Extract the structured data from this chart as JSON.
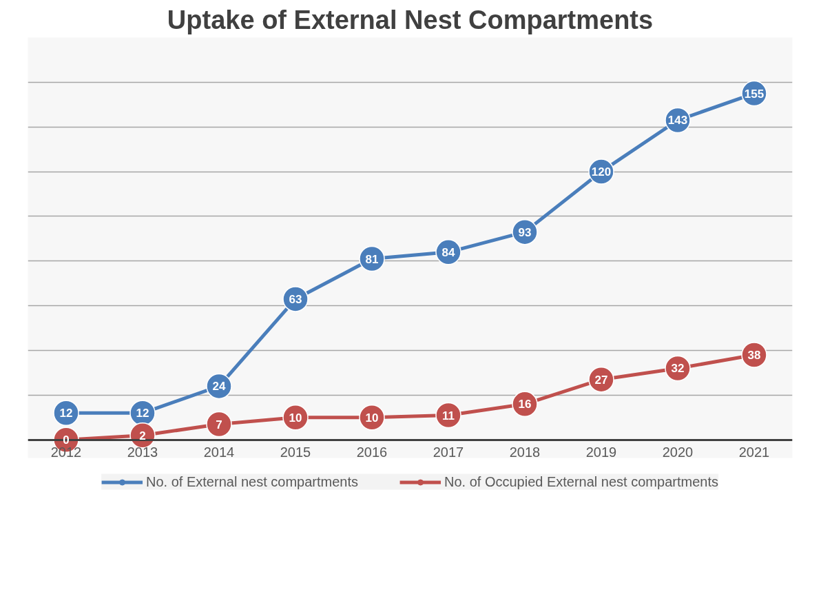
{
  "chart_data": {
    "type": "line",
    "title": "Uptake of External Nest Compartments",
    "categories": [
      "2012",
      "2013",
      "2014",
      "2015",
      "2016",
      "2017",
      "2018",
      "2019",
      "2020",
      "2021"
    ],
    "series": [
      {
        "name": "No. of External nest compartments",
        "color": "#4a7ebb",
        "values": [
          12,
          12,
          24,
          63,
          81,
          84,
          93,
          120,
          143,
          155
        ]
      },
      {
        "name": "No. of Occupied External nest compartments",
        "color": "#c0504d",
        "values": [
          0,
          2,
          7,
          10,
          10,
          11,
          16,
          27,
          32,
          38
        ]
      }
    ],
    "ylim": [
      0,
      180
    ],
    "yticks": [
      {
        "value": 0,
        "label": null
      },
      {
        "value": 20,
        "label": null
      },
      {
        "value": 40,
        "label": null
      },
      {
        "value": 60,
        "label": null
      },
      {
        "value": 80,
        "label": null
      },
      {
        "value": 100,
        "label": null
      },
      {
        "value": 120,
        "label": null
      },
      {
        "value": 140,
        "label": null
      },
      {
        "value": 160,
        "label": null
      },
      {
        "value": 180,
        "label": null
      }
    ],
    "tick_labels": "x",
    "grid": "y",
    "legend": "bottom",
    "marker": "circle",
    "line_style": "solid",
    "data_labels": true
  }
}
